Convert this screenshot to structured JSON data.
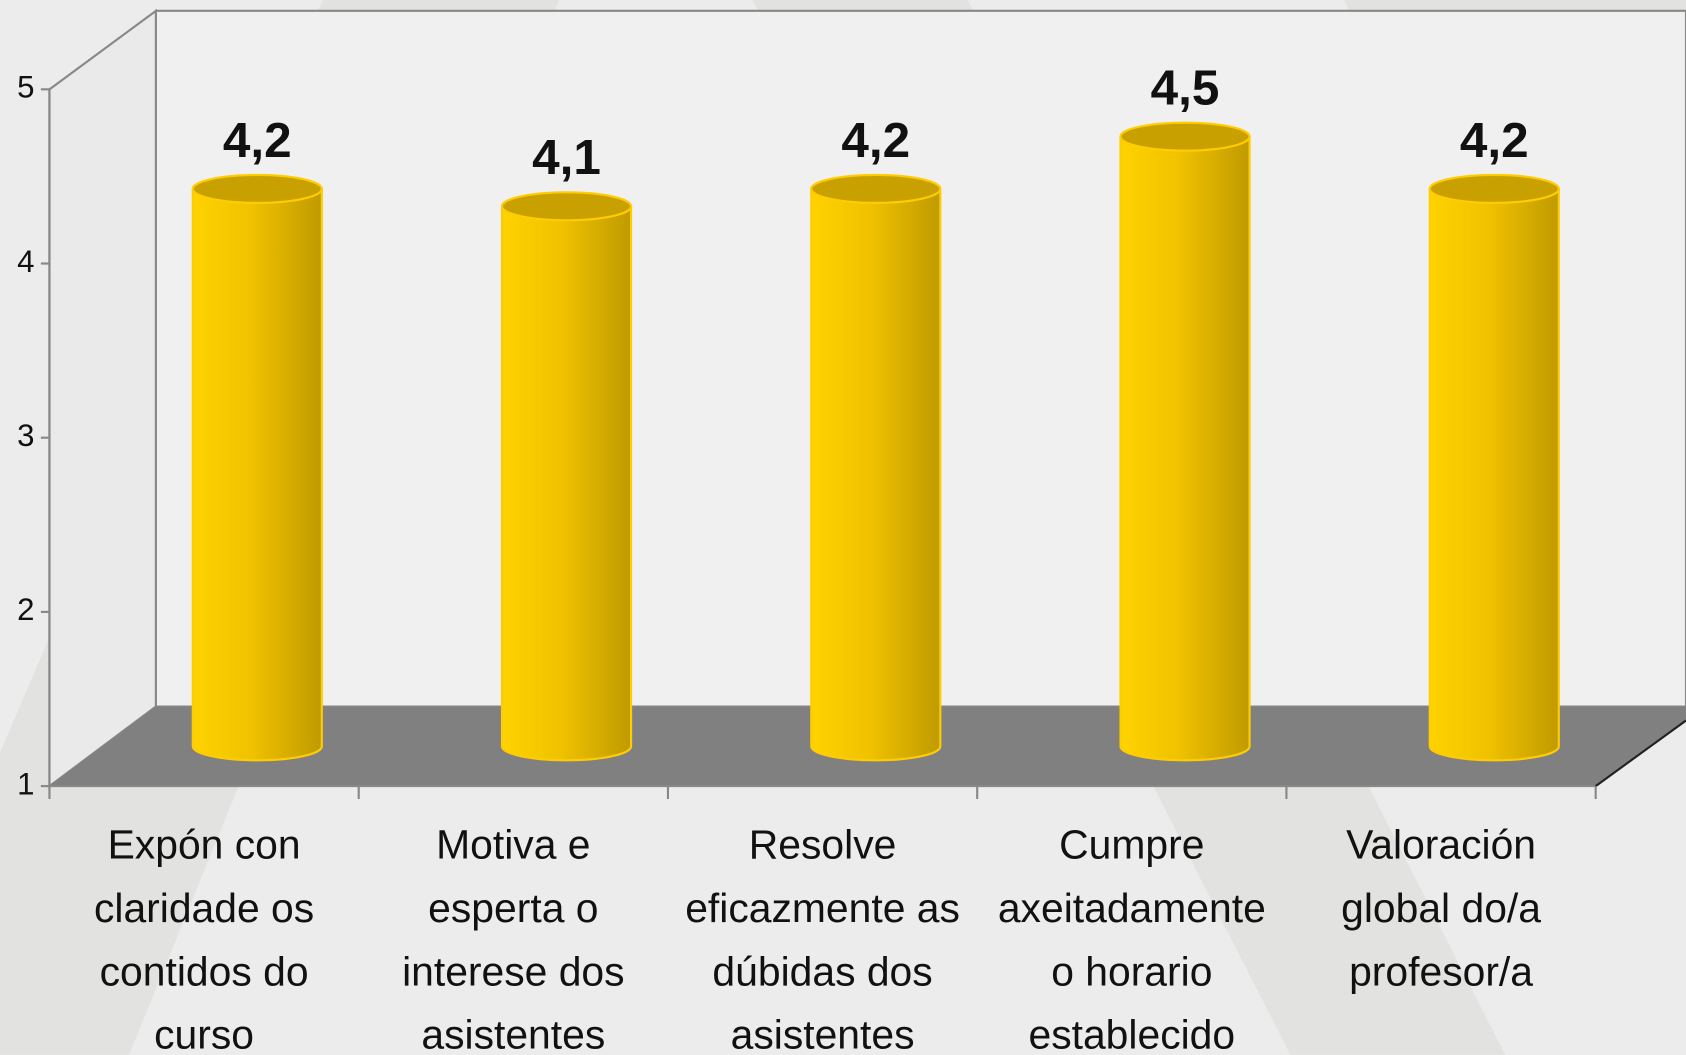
{
  "chart_data": {
    "type": "bar",
    "style": "3d-cylinder",
    "categories": [
      "Expón con\nclaridade os\ncontidos do\ncurso",
      "Motiva e\nesperta o\ninterese dos\nasistentes",
      "Resolve\neficazmente as\ndúbidas dos\nasistentes",
      "Cumpre\naxeitadamente\no horario\nestablecido",
      "Valoración\nglobal do/a\nprofesor/a"
    ],
    "values": [
      4.2,
      4.1,
      4.2,
      4.5,
      4.2
    ],
    "value_labels": [
      "4,2",
      "4,1",
      "4,2",
      "4,5",
      "4,2"
    ],
    "color": "#ffcc00",
    "ylim": [
      1,
      5
    ],
    "yticks": [
      1,
      2,
      3,
      4,
      5
    ],
    "grid": false
  }
}
